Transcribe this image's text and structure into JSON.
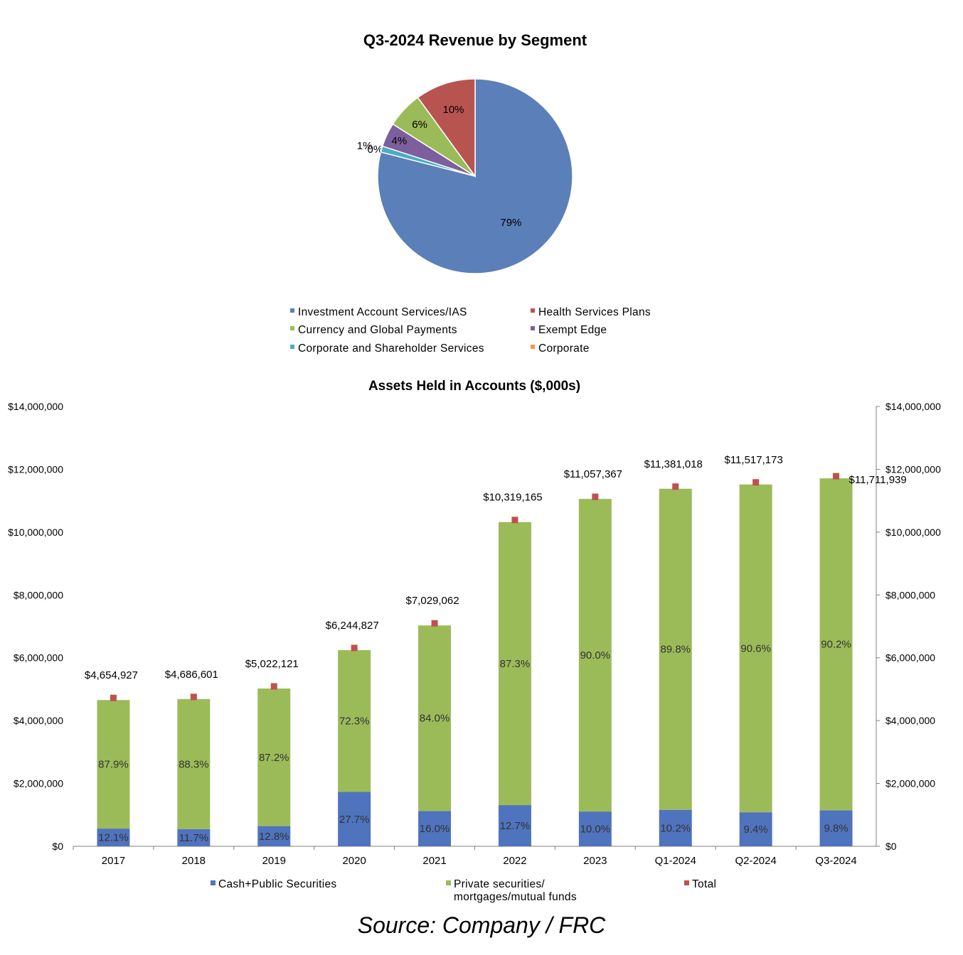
{
  "source_note": "Source: Company / FRC",
  "chart_data": [
    {
      "type": "pie",
      "title": "Q3-2024 Revenue by Segment",
      "slices": [
        {
          "name": "Investment Account Services/IAS",
          "value": 79,
          "label": "79%",
          "color": "#5b7fb8"
        },
        {
          "name": "Health Services Plans",
          "value": 10,
          "label": "10%",
          "color": "#b85450"
        },
        {
          "name": "Currency and Global Payments",
          "value": 6,
          "label": "6%",
          "color": "#9bbb59"
        },
        {
          "name": "Exempt Edge",
          "value": 4,
          "label": "4%",
          "color": "#7d5f9e"
        },
        {
          "name": "Corporate and Shareholder Services",
          "value": 1,
          "label": "1%",
          "color": "#4bacc6"
        },
        {
          "name": "Corporate",
          "value": 0,
          "label": "0%",
          "color": "#f79646"
        }
      ],
      "legend_position": "bottom"
    },
    {
      "type": "bar",
      "stacked": true,
      "title": "Assets Held in Accounts ($,000s)",
      "categories": [
        "2017",
        "2018",
        "2019",
        "2020",
        "2021",
        "2022",
        "2023",
        "Q1-2024",
        "Q2-2024",
        "Q3-2024"
      ],
      "series": [
        {
          "name": "Cash+Public Securities",
          "color": "#4f73bd",
          "share_labels": [
            "12.1%",
            "11.7%",
            "12.8%",
            "27.7%",
            "16.0%",
            "12.7%",
            "10.0%",
            "10.2%",
            "9.4%",
            "9.8%"
          ]
        },
        {
          "name": "Private securities/ mortgages/mutual funds",
          "name_lines": [
            "Private securities/",
            "mortgages/mutual funds"
          ],
          "color": "#9bbb59",
          "share_labels": [
            "87.9%",
            "88.3%",
            "87.2%",
            "72.3%",
            "84.0%",
            "87.3%",
            "90.0%",
            "89.8%",
            "90.6%",
            "90.2%"
          ]
        },
        {
          "name": "Total",
          "color": "#c0504d",
          "values": [
            4654927,
            4686601,
            5022121,
            6244827,
            7029062,
            10319165,
            11057367,
            11381018,
            11517173,
            11711939
          ],
          "labels": [
            "$4,654,927",
            "$4,686,601",
            "$5,022,121",
            "$6,244,827",
            "$7,029,062",
            "$10,319,165",
            "$11,057,367",
            "$11,381,018",
            "$11,517,173",
            "$11,711,939"
          ]
        }
      ],
      "cash_shares": [
        12.1,
        11.7,
        12.8,
        27.7,
        16.0,
        12.7,
        10.0,
        10.2,
        9.4,
        9.8
      ],
      "ylim": [
        0,
        14000000
      ],
      "yticks": [
        "$0",
        "$2,000,000",
        "$4,000,000",
        "$6,000,000",
        "$8,000,000",
        "$10,000,000",
        "$12,000,000",
        "$14,000,000"
      ],
      "ytick_values": [
        0,
        2000000,
        4000000,
        6000000,
        8000000,
        10000000,
        12000000,
        14000000
      ],
      "secondary_axis": true,
      "grid": false,
      "legend_position": "bottom"
    }
  ]
}
